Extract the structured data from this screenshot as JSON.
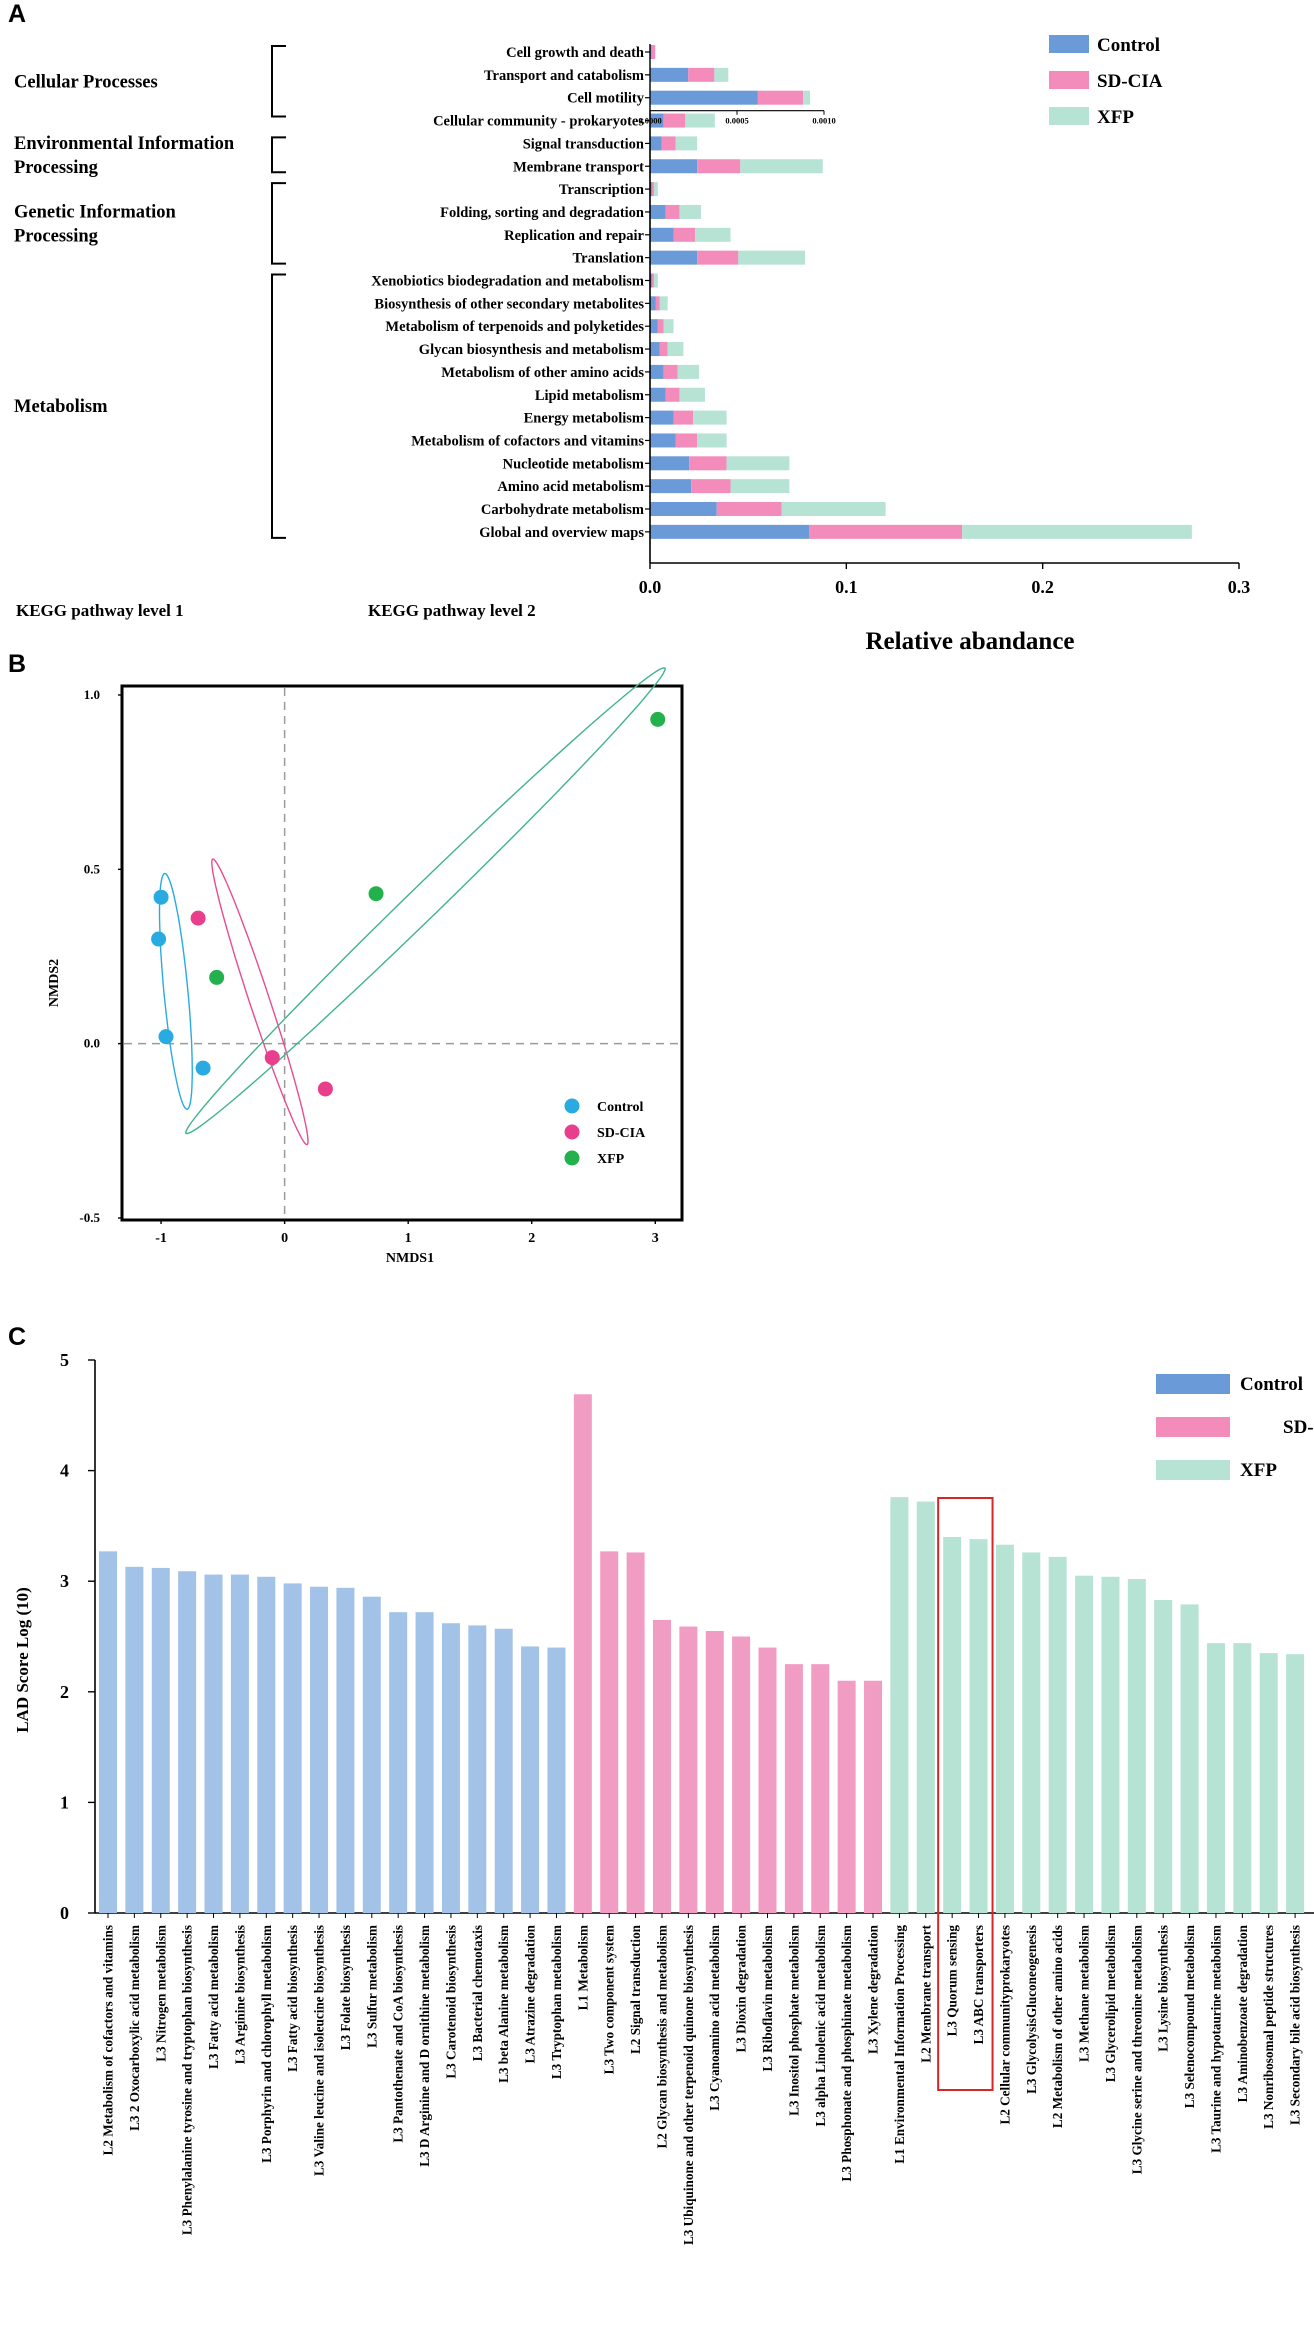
{
  "colors": {
    "control": "#6a9bd8",
    "sdcia": "#f48cbb",
    "xfp": "#b6e3d4",
    "scatter_control": "#29abe2",
    "scatter_sdcia": "#e83e8c",
    "scatter_xfp": "#22b14c",
    "lefse_control": "#a2c2e8",
    "lefse_sdcia": "#f19cc3",
    "lefse_xfp": "#b6e3d4",
    "highlight": "#d7262a"
  },
  "chart_data": [
    {
      "panel": "A",
      "type": "bar",
      "stacked": true,
      "orientation": "horizontal",
      "xlabel": "Relative abandance",
      "level1_title": "KEGG pathway level 1",
      "level2_title": "KEGG pathway level 2",
      "xlim": [
        0,
        0.3
      ],
      "xticks": [
        "0.0",
        "0.1",
        "0.2",
        "0.3"
      ],
      "inset": {
        "xlim": [
          0,
          0.001
        ],
        "xticks": [
          "0.0000",
          "0.0005",
          "0.0010"
        ]
      },
      "legend": [
        "Control",
        "SD-CIA",
        "XFP"
      ],
      "groups": [
        {
          "name": "Cellular Processes",
          "lines": [
            "Cellular Processes"
          ]
        },
        {
          "name": "Environmental Information Processing",
          "lines": [
            "Environmental Information",
            "Processing"
          ]
        },
        {
          "name": "Genetic Information Processing",
          "lines": [
            "Genetic Information",
            "Processing"
          ]
        },
        {
          "name": "Metabolism",
          "lines": [
            "Metabolism"
          ]
        }
      ],
      "categories": [
        {
          "label": "Cell growth and death",
          "group": "Cellular Processes",
          "inset": true,
          "values": [
            1e-05,
            2e-05,
            0.0
          ]
        },
        {
          "label": "Transport and catabolism",
          "group": "Cellular Processes",
          "inset": true,
          "values": [
            0.00022,
            0.00015,
            8e-05
          ]
        },
        {
          "label": "Cell motility",
          "group": "Cellular Processes",
          "inset": true,
          "values": [
            0.00062,
            0.00026,
            4e-05
          ]
        },
        {
          "label": "Cellular community - prokaryotes",
          "group": "Cellular Processes",
          "values": [
            0.007,
            0.011,
            0.015
          ]
        },
        {
          "label": "Signal transduction",
          "group": "Environmental Information Processing",
          "values": [
            0.006,
            0.007,
            0.011
          ]
        },
        {
          "label": "Membrane transport",
          "group": "Environmental Information Processing",
          "values": [
            0.024,
            0.022,
            0.042
          ]
        },
        {
          "label": "Transcription",
          "group": "Genetic Information Processing",
          "values": [
            0.001,
            0.001,
            0.002
          ]
        },
        {
          "label": "Folding, sorting and degradation",
          "group": "Genetic Information Processing",
          "values": [
            0.008,
            0.007,
            0.011
          ]
        },
        {
          "label": "Replication and repair",
          "group": "Genetic Information Processing",
          "values": [
            0.012,
            0.011,
            0.018
          ]
        },
        {
          "label": "Translation",
          "group": "Genetic Information Processing",
          "values": [
            0.024,
            0.021,
            0.034
          ]
        },
        {
          "label": "Xenobiotics biodegradation and metabolism",
          "group": "Metabolism",
          "values": [
            0.001,
            0.001,
            0.002
          ]
        },
        {
          "label": "Biosynthesis of other secondary metabolites",
          "group": "Metabolism",
          "values": [
            0.003,
            0.002,
            0.004
          ]
        },
        {
          "label": "Metabolism of terpenoids and polyketides",
          "group": "Metabolism",
          "values": [
            0.004,
            0.003,
            0.005
          ]
        },
        {
          "label": "Glycan biosynthesis and metabolism",
          "group": "Metabolism",
          "values": [
            0.005,
            0.004,
            0.008
          ]
        },
        {
          "label": "Metabolism of other amino acids",
          "group": "Metabolism",
          "values": [
            0.007,
            0.007,
            0.011
          ]
        },
        {
          "label": "Lipid metabolism",
          "group": "Metabolism",
          "values": [
            0.008,
            0.007,
            0.013
          ]
        },
        {
          "label": "Energy metabolism",
          "group": "Metabolism",
          "values": [
            0.012,
            0.01,
            0.017
          ]
        },
        {
          "label": "Metabolism of cofactors and vitamins",
          "group": "Metabolism",
          "values": [
            0.013,
            0.011,
            0.015
          ]
        },
        {
          "label": "Nucleotide metabolism",
          "group": "Metabolism",
          "values": [
            0.02,
            0.019,
            0.032
          ]
        },
        {
          "label": "Amino acid metabolism",
          "group": "Metabolism",
          "values": [
            0.021,
            0.02,
            0.03
          ]
        },
        {
          "label": "Carbohydrate metabolism",
          "group": "Metabolism",
          "values": [
            0.034,
            0.033,
            0.053
          ]
        },
        {
          "label": "Global and overview maps",
          "group": "Metabolism",
          "values": [
            0.081,
            0.078,
            0.117
          ]
        }
      ]
    },
    {
      "panel": "B",
      "type": "scatter",
      "xlabel": "NMDS1",
      "ylabel": "NMDS2",
      "xlim": [
        -1.3,
        3.2
      ],
      "ylim": [
        -0.5,
        1.02
      ],
      "xticks": [
        -1,
        0,
        1,
        2,
        3
      ],
      "yticks": [
        {
          "v": -0.5,
          "t": "-0.5"
        },
        {
          "v": 0,
          "t": "0.0"
        },
        {
          "v": 0.5,
          "t": "0.5"
        },
        {
          "v": 1.0,
          "t": "1.0"
        }
      ],
      "legend": [
        "Control",
        "SD-CIA",
        "XFP"
      ],
      "series": [
        {
          "name": "Control",
          "points": [
            [
              -1.0,
              0.42
            ],
            [
              -1.02,
              0.3
            ],
            [
              -0.96,
              0.02
            ],
            [
              -0.66,
              -0.07
            ]
          ]
        },
        {
          "name": "SD-CIA",
          "points": [
            [
              -0.7,
              0.36
            ],
            [
              -0.1,
              -0.04
            ],
            [
              0.33,
              -0.13
            ]
          ]
        },
        {
          "name": "XFP",
          "points": [
            [
              -0.55,
              0.19
            ],
            [
              0.74,
              0.43
            ],
            [
              3.02,
              0.93
            ]
          ]
        }
      ],
      "ellipses": [
        {
          "name": "Control",
          "center": [
            -0.88,
            0.15
          ],
          "a": 0.35,
          "b": 0.012,
          "angle_data": -75
        },
        {
          "name": "SD-CIA",
          "center": [
            -0.2,
            0.12
          ],
          "a": 0.56,
          "b": 0.01,
          "angle_data": -47
        },
        {
          "name": "XFP",
          "center": [
            1.14,
            0.41
          ],
          "a": 2.05,
          "b": 0.016,
          "angle_data": 19
        }
      ]
    },
    {
      "panel": "C",
      "type": "bar",
      "ylabel": "LAD Score Log (10)",
      "ylim": [
        0,
        5
      ],
      "yticks": [
        0,
        1,
        2,
        3,
        4,
        5
      ],
      "legend": [
        "Control",
        "SD-CIA",
        "XFP"
      ],
      "highlight": [
        "L3 Quorum sensing",
        "L3 ABC transporters"
      ],
      "bars": [
        {
          "label": "L2 Metabolism of cofactors and vitamins",
          "value": 3.27,
          "group": "Control"
        },
        {
          "label": "L3 2 Oxocarboxylic acid metabolism",
          "value": 3.13,
          "group": "Control"
        },
        {
          "label": "L3 Nitrogen metabolism",
          "value": 3.12,
          "group": "Control"
        },
        {
          "label": "L3 Phenylalanine tyrosine and tryptophan biosynthesis",
          "value": 3.09,
          "group": "Control"
        },
        {
          "label": "L3 Fatty acid metabolism",
          "value": 3.06,
          "group": "Control"
        },
        {
          "label": "L3 Arginine biosynthesis",
          "value": 3.06,
          "group": "Control"
        },
        {
          "label": "L3 Porphyrin and chlorophyll metabolism",
          "value": 3.04,
          "group": "Control"
        },
        {
          "label": "L3 Fatty acid biosynthesis",
          "value": 2.98,
          "group": "Control"
        },
        {
          "label": "L3 Valine leucine and isoleucine biosynthesis",
          "value": 2.95,
          "group": "Control"
        },
        {
          "label": "L3 Folate biosynthesis",
          "value": 2.94,
          "group": "Control"
        },
        {
          "label": "L3 Sulfur metabolism",
          "value": 2.86,
          "group": "Control"
        },
        {
          "label": "L3 Pantothenate and CoA biosynthesis",
          "value": 2.72,
          "group": "Control"
        },
        {
          "label": "L3 D Arginine and D ornithine metabolism",
          "value": 2.72,
          "group": "Control"
        },
        {
          "label": "L3 Carotenoid biosynthesis",
          "value": 2.62,
          "group": "Control"
        },
        {
          "label": "L3 Bacterial chemotaxis",
          "value": 2.6,
          "group": "Control"
        },
        {
          "label": "L3 beta Alanine metabolism",
          "value": 2.57,
          "group": "Control"
        },
        {
          "label": "L3 Atrazine degradation",
          "value": 2.41,
          "group": "Control"
        },
        {
          "label": "L3 Tryptophan metabolism",
          "value": 2.4,
          "group": "Control"
        },
        {
          "label": "L1 Metabolism",
          "value": 4.69,
          "group": "SD-CIA"
        },
        {
          "label": "L3 Two component system",
          "value": 3.27,
          "group": "SD-CIA"
        },
        {
          "label": "L2 Signal transduction",
          "value": 3.26,
          "group": "SD-CIA"
        },
        {
          "label": "L2 Glycan biosynthesis and metabolism",
          "value": 2.65,
          "group": "SD-CIA"
        },
        {
          "label": "L3 Ubiquinone and other terpenoid quinone biosynthesis",
          "value": 2.59,
          "group": "SD-CIA"
        },
        {
          "label": "L3 Cyanoamino acid metabolism",
          "value": 2.55,
          "group": "SD-CIA"
        },
        {
          "label": "L3 Dioxin degradation",
          "value": 2.5,
          "group": "SD-CIA"
        },
        {
          "label": "L3 Riboflavin metabolism",
          "value": 2.4,
          "group": "SD-CIA"
        },
        {
          "label": "L3 Inositol phosphate metabolism",
          "value": 2.25,
          "group": "SD-CIA"
        },
        {
          "label": "L3 alpha Linolenic acid metabolism",
          "value": 2.25,
          "group": "SD-CIA"
        },
        {
          "label": "L3 Phosphonate and phosphinate metabolism",
          "value": 2.1,
          "group": "SD-CIA"
        },
        {
          "label": "L3 Xylene degradation",
          "value": 2.1,
          "group": "SD-CIA"
        },
        {
          "label": "L1 Environmental Information Processing",
          "value": 3.76,
          "group": "XFP"
        },
        {
          "label": "L2 Membrane transport",
          "value": 3.72,
          "group": "XFP"
        },
        {
          "label": "L3 Quorum sensing",
          "value": 3.4,
          "group": "XFP"
        },
        {
          "label": "L3 ABC transporters",
          "value": 3.38,
          "group": "XFP"
        },
        {
          "label": "L2 Cellular communityprokaryotes",
          "value": 3.33,
          "group": "XFP"
        },
        {
          "label": "L3 GlycolysisGluconeogenesis",
          "value": 3.26,
          "group": "XFP"
        },
        {
          "label": "L2 Metabolism of other amino acids",
          "value": 3.22,
          "group": "XFP"
        },
        {
          "label": "L3 Methane metabolism",
          "value": 3.05,
          "group": "XFP"
        },
        {
          "label": "L3 Glycerolipid metabolism",
          "value": 3.04,
          "group": "XFP"
        },
        {
          "label": "L3 Glycine serine and threonine metabolism",
          "value": 3.02,
          "group": "XFP"
        },
        {
          "label": "L3 Lysine biosynthesis",
          "value": 2.83,
          "group": "XFP"
        },
        {
          "label": "L3 Selenocompound metabolism",
          "value": 2.79,
          "group": "XFP"
        },
        {
          "label": "L3 Taurine and hypotaurine metabolism",
          "value": 2.44,
          "group": "XFP"
        },
        {
          "label": "L3 Aminobenzoate degradation",
          "value": 2.44,
          "group": "XFP"
        },
        {
          "label": "L3 Nonribosomal peptide structures",
          "value": 2.35,
          "group": "XFP"
        },
        {
          "label": "L3 Secondary bile acid biosynthesis",
          "value": 2.34,
          "group": "XFP"
        }
      ]
    }
  ]
}
